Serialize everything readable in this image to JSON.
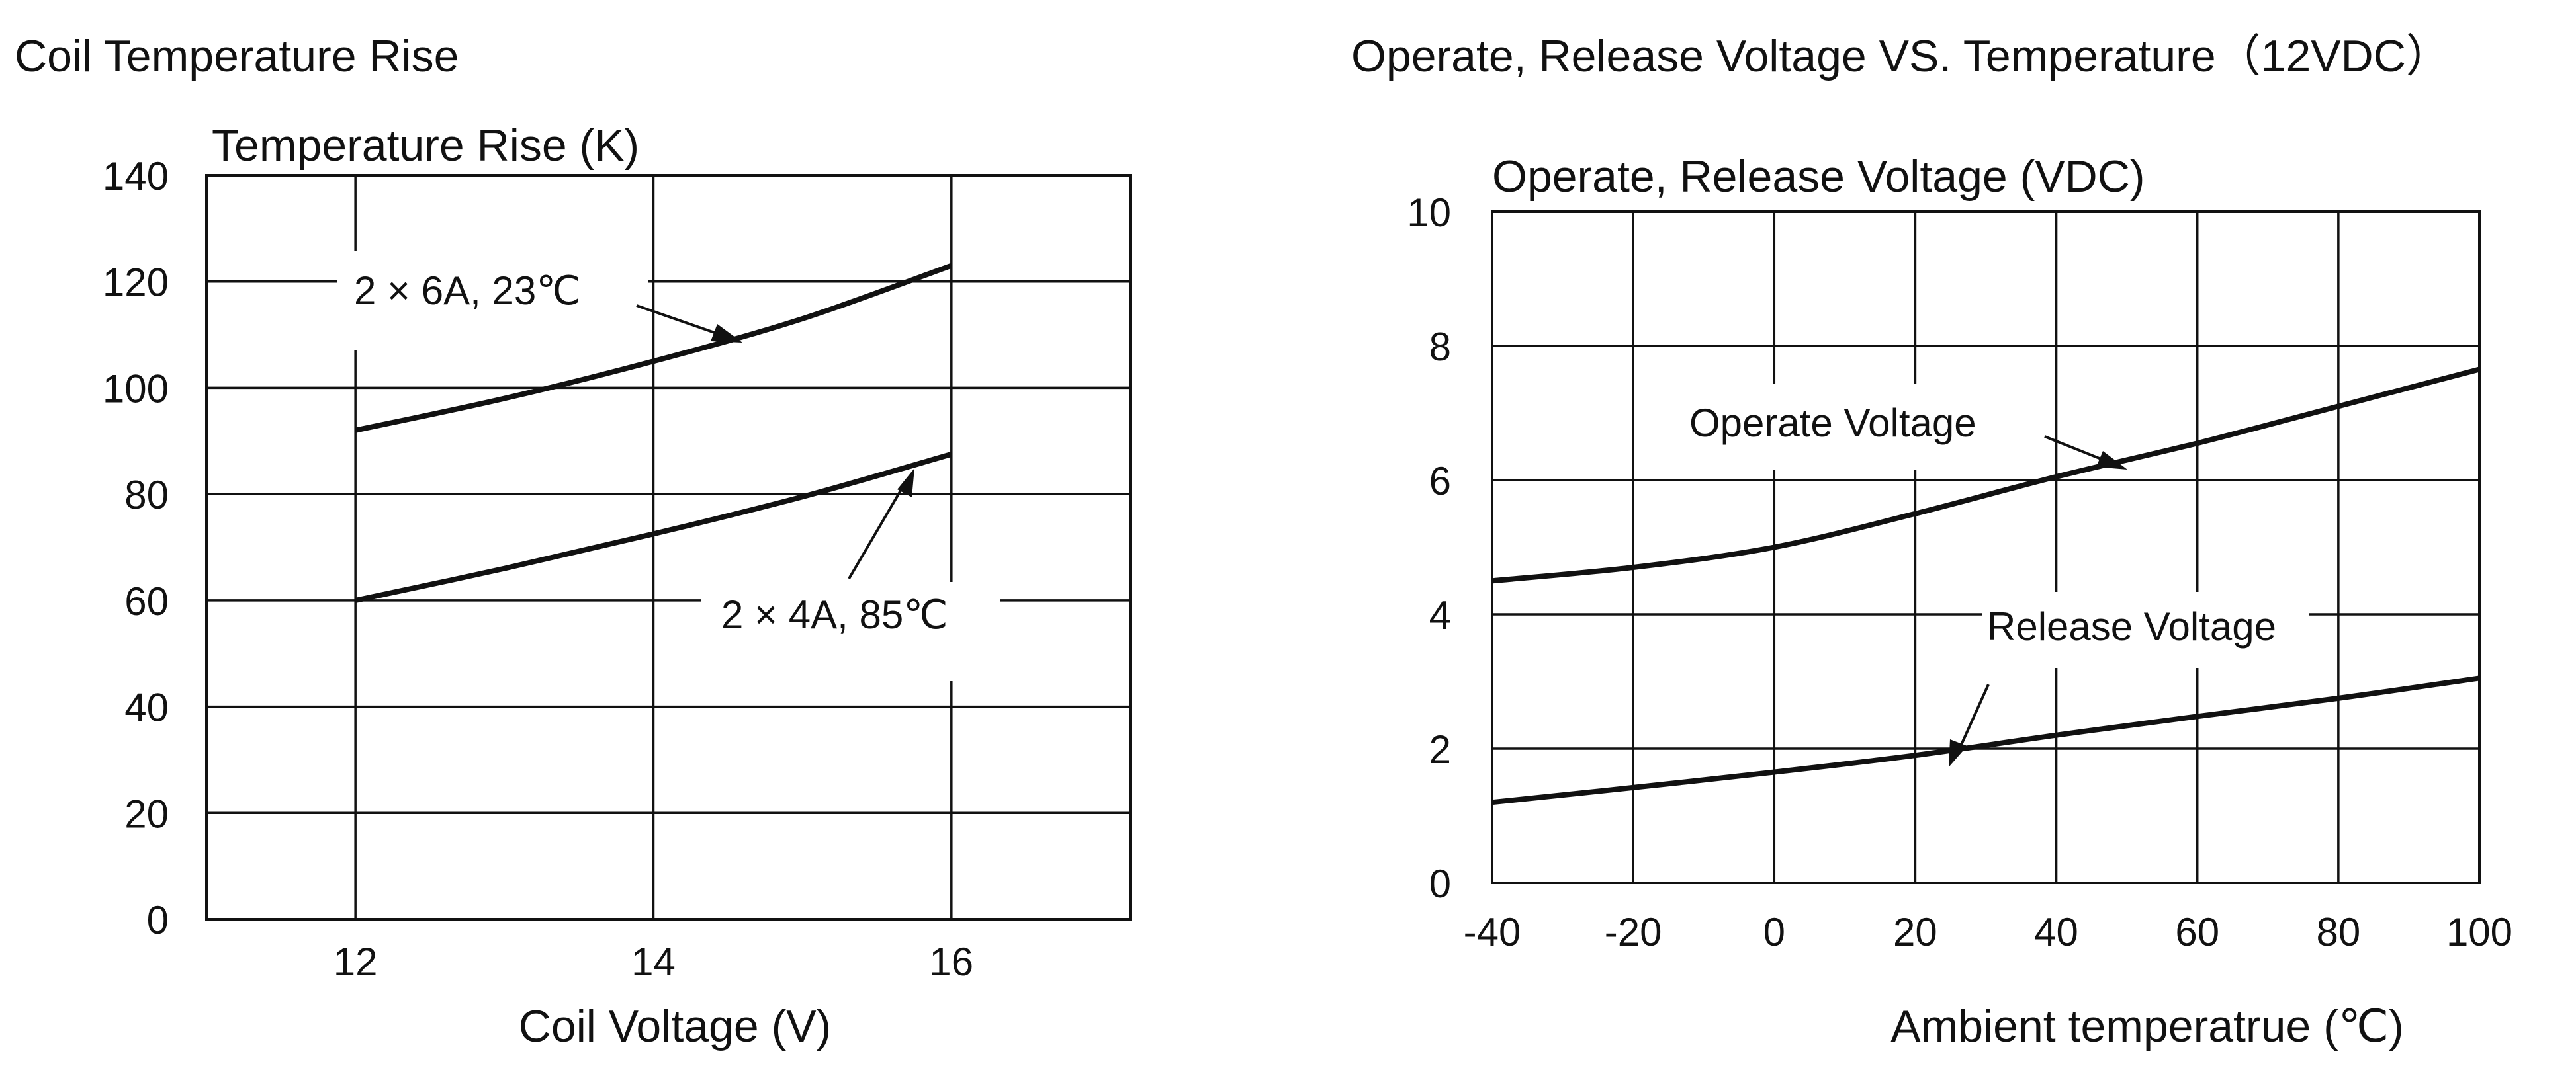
{
  "chart_data": [
    {
      "type": "line",
      "title": "Coil Temperature Rise",
      "ylabel": "Temperature Rise (K)",
      "xlabel": "Coil  Voltage (V)",
      "xlim": [
        11,
        17.2
      ],
      "ylim": [
        0,
        140
      ],
      "x_ticks": [
        12,
        14,
        16
      ],
      "y_ticks": [
        0,
        20,
        40,
        60,
        80,
        100,
        120,
        140
      ],
      "x_grid": [
        12,
        14,
        16
      ],
      "y_grid": [
        20,
        40,
        60,
        80,
        100,
        120
      ],
      "grid": true,
      "series": [
        {
          "name": "2 × 6A, 23℃",
          "x": [
            12,
            13,
            14,
            15,
            16
          ],
          "y": [
            92,
            98,
            105,
            113,
            123
          ]
        },
        {
          "name": "2 × 4A,  85℃",
          "x": [
            12,
            13,
            14,
            15,
            16
          ],
          "y": [
            60,
            66,
            72.5,
            79.5,
            87.5
          ]
        }
      ]
    },
    {
      "type": "line",
      "title": "Operate, Release Voltage VS. Temperature（12VDC）",
      "ylabel": "Operate, Release Voltage (VDC)",
      "xlabel": "Ambient temperatrue (℃)",
      "xlim": [
        -40,
        100
      ],
      "ylim": [
        0,
        10
      ],
      "x_ticks": [
        -40,
        -20,
        0,
        20,
        40,
        60,
        80,
        100
      ],
      "y_ticks": [
        0,
        2,
        4,
        6,
        8,
        10
      ],
      "x_grid": [
        -20,
        0,
        20,
        40,
        60,
        80
      ],
      "y_grid": [
        2,
        4,
        6,
        8
      ],
      "grid": true,
      "series": [
        {
          "name": "Operate  Voltage",
          "x": [
            -40,
            -20,
            0,
            20,
            40,
            60,
            80,
            100
          ],
          "y": [
            4.5,
            4.7,
            5.0,
            5.5,
            6.05,
            6.55,
            7.1,
            7.65
          ]
        },
        {
          "name": "Release Voltage",
          "x": [
            -40,
            -20,
            0,
            20,
            40,
            60,
            80,
            100
          ],
          "y": [
            1.2,
            1.42,
            1.65,
            1.9,
            2.2,
            2.48,
            2.75,
            3.05
          ]
        }
      ]
    }
  ]
}
